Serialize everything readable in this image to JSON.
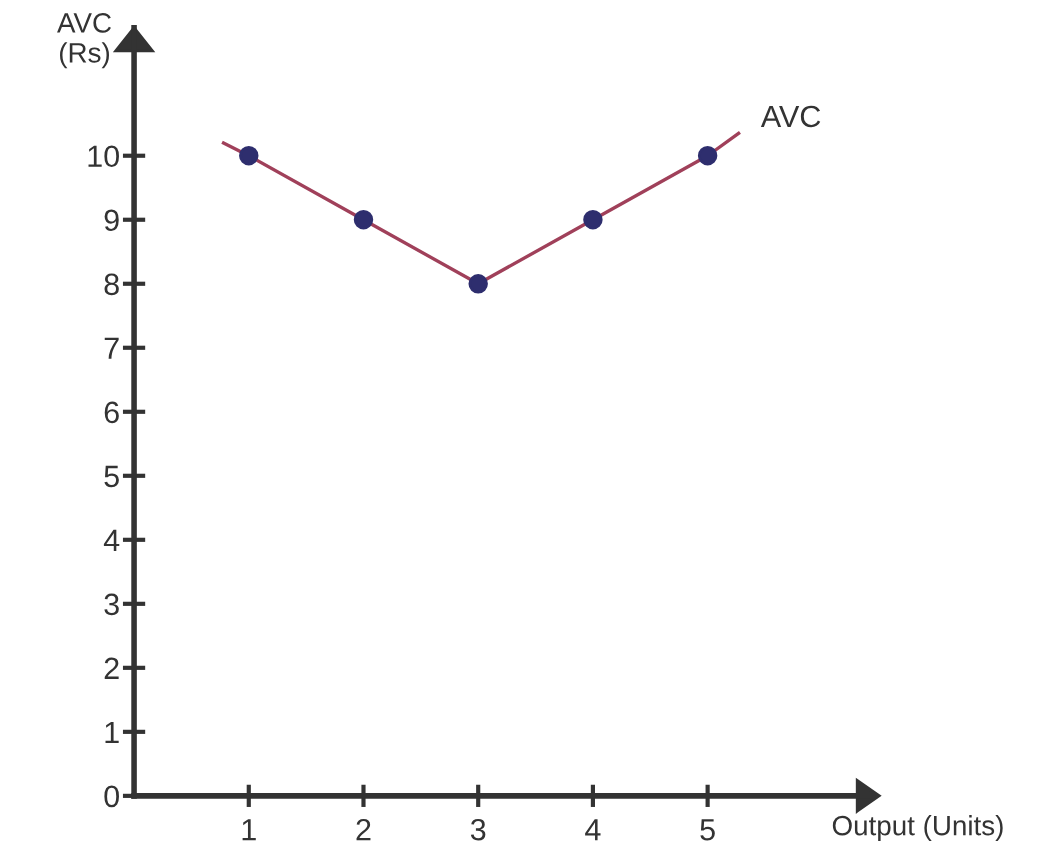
{
  "chart_data": {
    "type": "line",
    "xlabel": "Output (Units)",
    "ylabel": "AVC\n(Rs)",
    "xlim": [
      0,
      6.4
    ],
    "ylim": [
      0,
      12
    ],
    "xticks": [
      1,
      2,
      3,
      4,
      5
    ],
    "yticks": [
      0,
      1,
      2,
      3,
      4,
      5,
      6,
      7,
      8,
      9,
      10
    ],
    "grid": false,
    "legend": false,
    "series": [
      {
        "name": "AVC",
        "color": "#a0405a",
        "marker": "none",
        "line_style": "solid",
        "x": [
          0.78,
          1,
          2,
          3,
          4,
          5,
          5.27
        ],
        "values": [
          10.2,
          10,
          9,
          8,
          9,
          10,
          10.35
        ]
      },
      {
        "type": "scatter",
        "color": "#2e2e6e",
        "marker": "circle",
        "x": [
          1,
          2,
          3,
          4,
          5
        ],
        "values": [
          10,
          9,
          8,
          9,
          10
        ]
      }
    ]
  }
}
